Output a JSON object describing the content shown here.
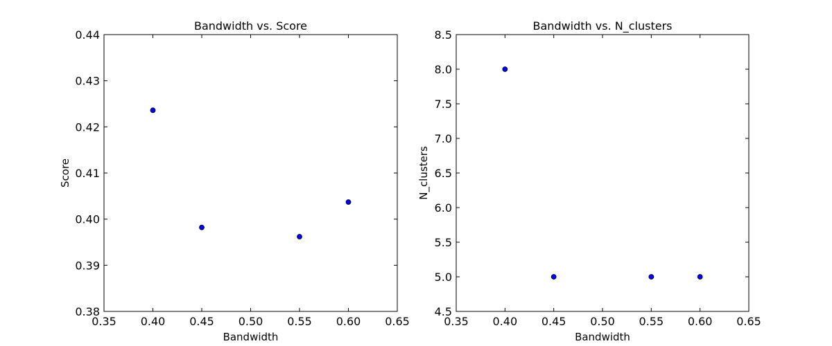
{
  "chart_data": [
    {
      "type": "scatter",
      "title": "Bandwidth vs. Score",
      "xlabel": "Bandwidth",
      "ylabel": "Score",
      "xlim": [
        0.35,
        0.65
      ],
      "ylim": [
        0.38,
        0.44
      ],
      "xticks": [
        "0.35",
        "0.40",
        "0.45",
        "0.50",
        "0.55",
        "0.60",
        "0.65"
      ],
      "yticks": [
        "0.38",
        "0.39",
        "0.40",
        "0.41",
        "0.42",
        "0.43",
        "0.44"
      ],
      "grid": false,
      "marker_color": "#0000ff",
      "points": [
        {
          "x": 0.4,
          "y": 0.4236
        },
        {
          "x": 0.45,
          "y": 0.3982
        },
        {
          "x": 0.55,
          "y": 0.3962
        },
        {
          "x": 0.6,
          "y": 0.4037
        }
      ]
    },
    {
      "type": "scatter",
      "title": "Bandwidth vs. N_clusters",
      "xlabel": "Bandwidth",
      "ylabel": "N_clusters",
      "xlim": [
        0.35,
        0.65
      ],
      "ylim": [
        4.5,
        8.5
      ],
      "xticks": [
        "0.35",
        "0.40",
        "0.45",
        "0.50",
        "0.55",
        "0.60",
        "0.65"
      ],
      "yticks": [
        "4.5",
        "5.0",
        "5.5",
        "6.0",
        "6.5",
        "7.0",
        "7.5",
        "8.0",
        "8.5"
      ],
      "grid": false,
      "marker_color": "#0000ff",
      "points": [
        {
          "x": 0.4,
          "y": 8.0
        },
        {
          "x": 0.45,
          "y": 5.0
        },
        {
          "x": 0.55,
          "y": 5.0
        },
        {
          "x": 0.6,
          "y": 5.0
        }
      ]
    }
  ]
}
